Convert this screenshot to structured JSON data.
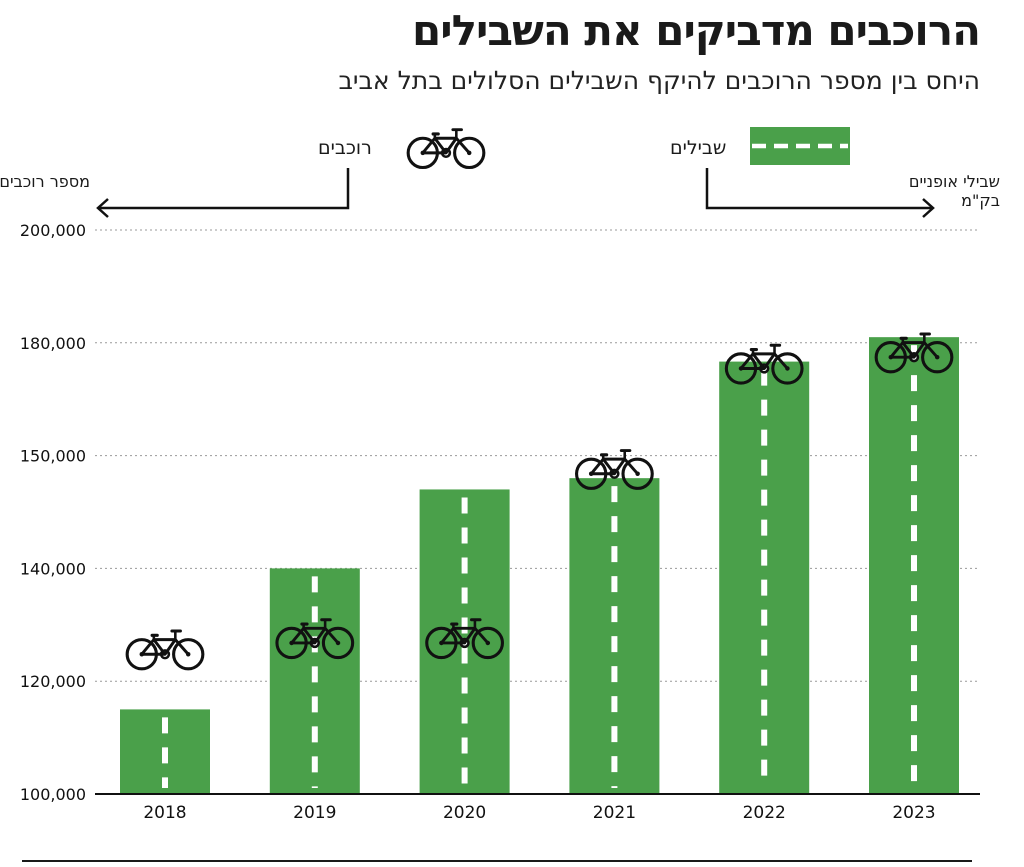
{
  "title": "הרוכבים מדביקים את השבילים",
  "subtitle": "היחס בין מספר הרוכבים להיקף השבילים הסלולים בתל אביב",
  "legend": {
    "riders_label": "רוכבים",
    "paths_label": "שבילים",
    "bike_icon": "bicycle-icon",
    "path_icon": "dashed-path-icon"
  },
  "colors": {
    "bar": "#4aa04a",
    "dash": "#ffffff",
    "ink": "#111111",
    "grid": "#9a9a9a"
  },
  "chart_data": {
    "type": "bar",
    "categories": [
      "2018",
      "2019",
      "2020",
      "2021",
      "2022",
      "2023"
    ],
    "series": [
      {
        "name": "שבילים",
        "axis": "right",
        "axis_label": "שבילי אופניים בק\"מ",
        "values": [
          115,
          140,
          147,
          148,
          175,
          181
        ],
        "note": "values read against the shared gridline scale"
      },
      {
        "name": "רוכבים",
        "axis": "left",
        "axis_label": "מספר רוכבים יומי",
        "values": [
          126000,
          128000,
          128000,
          149000,
          175000,
          178000
        ]
      }
    ],
    "y_ticks": [
      "100,000",
      "120,000",
      "140,000",
      "150,000",
      "180,000",
      "200,000"
    ],
    "ylabel_left": "מספר רוכבים יומי",
    "ylabel_right": "שבילי אופניים בק\"מ",
    "grid": true
  }
}
